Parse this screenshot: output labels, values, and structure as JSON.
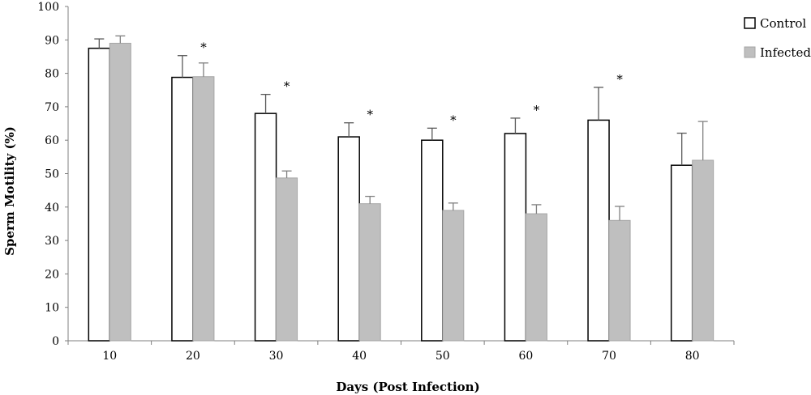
{
  "chart_data": {
    "type": "bar",
    "xlabel": "Days (Post Infection)",
    "ylabel": "Sperm Motility (%)",
    "ylim": [
      0,
      100
    ],
    "yticks": [
      0,
      10,
      20,
      30,
      40,
      50,
      60,
      70,
      80,
      90,
      100
    ],
    "categories": [
      "10",
      "20",
      "30",
      "40",
      "50",
      "60",
      "70",
      "80"
    ],
    "legend_position": "top-right",
    "grid": false,
    "series": [
      {
        "name": "Control",
        "color": "#ffffff",
        "stroke": "#000000",
        "values": [
          87.5,
          78.8,
          68.0,
          61.0,
          60.0,
          62.0,
          66.0,
          52.5
        ],
        "error": [
          2.8,
          6.5,
          5.7,
          4.2,
          3.6,
          4.6,
          9.8,
          9.6
        ]
      },
      {
        "name": "Infected",
        "color": "#bfbfbf",
        "stroke": "#a6a6a6",
        "values": [
          89.0,
          79.0,
          48.7,
          41.0,
          39.0,
          38.0,
          36.0,
          54.0
        ],
        "error": [
          2.2,
          4.1,
          2.1,
          2.2,
          2.2,
          2.7,
          4.2,
          11.6
        ]
      }
    ],
    "significance": {
      "marker": "*",
      "categories": [
        "20",
        "30",
        "40",
        "50",
        "60",
        "70"
      ]
    }
  }
}
